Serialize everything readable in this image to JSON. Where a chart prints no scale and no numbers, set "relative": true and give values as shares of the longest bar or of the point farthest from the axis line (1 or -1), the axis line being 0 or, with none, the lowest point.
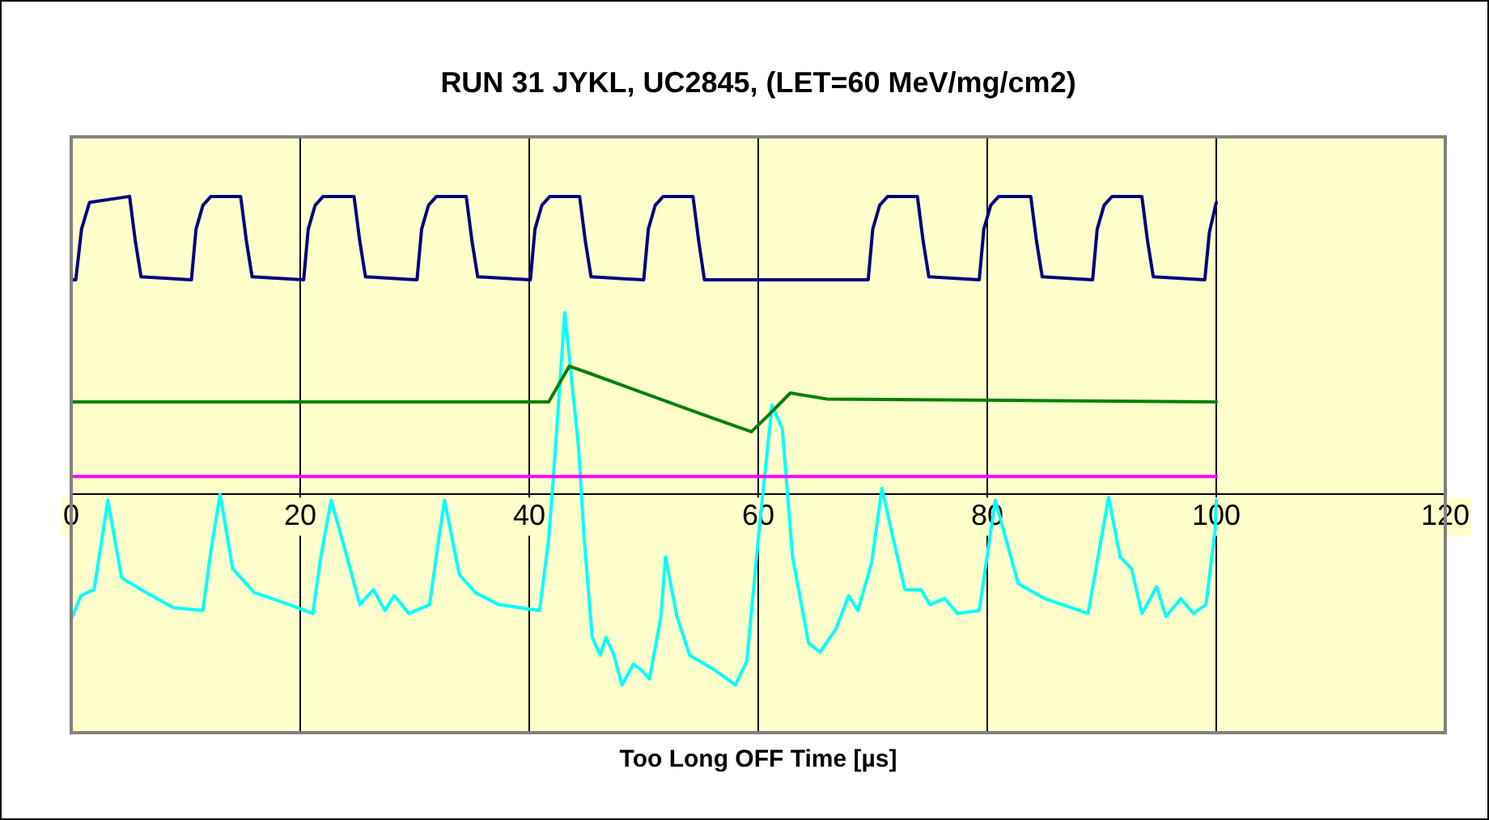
{
  "chart_data": {
    "type": "line",
    "title": "RUN 31 JYKL, UC2845, (LET=60 MeV/mg/cm2)",
    "xlabel": "Too Long OFF Time [µs]",
    "relative": true,
    "xlim": [
      0,
      120
    ],
    "xticks": [
      0,
      20,
      40,
      60,
      80,
      100,
      120
    ],
    "grid": "x",
    "legend": false,
    "marker": "none",
    "tick_labels": "x",
    "series": [
      {
        "color": "#000080",
        "x": [
          0,
          0.4,
          0.9,
          1.6,
          5.1,
          5.6,
          6.1,
          10.5,
          10.9,
          11.5,
          12.2,
          14.8,
          15.3,
          15.8,
          20.3,
          20.7,
          21.3,
          22.0,
          24.7,
          25.2,
          25.7,
          30.2,
          30.6,
          31.2,
          31.9,
          34.5,
          35.0,
          35.5,
          40.1,
          40.5,
          41.1,
          41.8,
          44.4,
          44.9,
          45.4,
          50.0,
          50.4,
          51.0,
          51.7,
          54.3,
          54.8,
          55.3,
          69.6,
          70.0,
          70.6,
          71.3,
          73.9,
          74.4,
          74.9,
          79.3,
          79.7,
          80.3,
          81.0,
          83.8,
          84.3,
          84.8,
          89.2,
          89.6,
          90.2,
          90.9,
          93.5,
          94.0,
          94.5,
          99.0,
          99.4,
          100
        ],
        "values": [
          0.72,
          0.72,
          0.89,
          0.98,
          1.0,
          0.85,
          0.73,
          0.72,
          0.89,
          0.97,
          1.0,
          1.0,
          0.85,
          0.73,
          0.72,
          0.89,
          0.97,
          1.0,
          1.0,
          0.85,
          0.73,
          0.72,
          0.89,
          0.97,
          1.0,
          1.0,
          0.85,
          0.73,
          0.72,
          0.89,
          0.97,
          1.0,
          1.0,
          0.85,
          0.73,
          0.72,
          0.89,
          0.97,
          1.0,
          1.0,
          0.85,
          0.72,
          0.72,
          0.89,
          0.97,
          1.0,
          1.0,
          0.85,
          0.73,
          0.72,
          0.89,
          0.97,
          1.0,
          1.0,
          0.85,
          0.73,
          0.72,
          0.89,
          0.97,
          1.0,
          1.0,
          0.85,
          0.73,
          0.72,
          0.88,
          0.98
        ]
      },
      {
        "color": "#008000",
        "x": [
          0,
          41.7,
          43.5,
          45,
          50,
          55,
          59.4,
          61,
          62.8,
          66,
          100
        ],
        "values": [
          0.31,
          0.31,
          0.43,
          0.41,
          0.34,
          0.27,
          0.21,
          0.27,
          0.34,
          0.32,
          0.31
        ]
      },
      {
        "color": "#ff00ff",
        "x": [
          0,
          100
        ],
        "values": [
          0.06,
          0.06
        ]
      },
      {
        "color": "#00ffff",
        "x": [
          0,
          0.85,
          2.0,
          3.2,
          4.4,
          6.1,
          8.9,
          11.5,
          12.2,
          13.0,
          14.1,
          16.0,
          18.3,
          21.1,
          21.8,
          22.7,
          23.8,
          25.2,
          26.4,
          27.4,
          28.2,
          29.5,
          31.3,
          32.1,
          32.6,
          33.9,
          35.3,
          37.3,
          40.9,
          41.7,
          42.3,
          43.1,
          44.3,
          44.8,
          45.5,
          46.2,
          46.7,
          47.4,
          48.1,
          49.1,
          49.8,
          50.5,
          51.5,
          51.9,
          52.9,
          54.0,
          56.2,
          58.0,
          59.0,
          60.0,
          61.2,
          62.1,
          63.0,
          64.4,
          65.4,
          66.8,
          67.9,
          68.7,
          69.9,
          70.8,
          72.8,
          74.2,
          75.0,
          76.3,
          77.4,
          79.3,
          80.7,
          82.7,
          85.0,
          88.8,
          90.6,
          91.6,
          92.6,
          93.5,
          94.8,
          95.6,
          96.9,
          98.0,
          99.1,
          99.9,
          100
        ],
        "values": [
          -0.42,
          -0.34,
          -0.32,
          -0.02,
          -0.28,
          -0.32,
          -0.38,
          -0.39,
          -0.19,
          0.0,
          -0.25,
          -0.33,
          -0.36,
          -0.4,
          -0.21,
          -0.02,
          -0.17,
          -0.37,
          -0.32,
          -0.39,
          -0.34,
          -0.4,
          -0.37,
          -0.15,
          -0.02,
          -0.27,
          -0.33,
          -0.37,
          -0.39,
          -0.15,
          0.16,
          0.61,
          0.16,
          -0.15,
          -0.48,
          -0.54,
          -0.48,
          -0.54,
          -0.64,
          -0.57,
          -0.59,
          -0.62,
          -0.41,
          -0.21,
          -0.41,
          -0.54,
          -0.59,
          -0.64,
          -0.56,
          -0.15,
          0.3,
          0.22,
          -0.21,
          -0.5,
          -0.53,
          -0.45,
          -0.34,
          -0.39,
          -0.23,
          0.02,
          -0.32,
          -0.32,
          -0.37,
          -0.35,
          -0.4,
          -0.39,
          -0.02,
          -0.3,
          -0.35,
          -0.4,
          -0.01,
          -0.21,
          -0.25,
          -0.4,
          -0.31,
          -0.41,
          -0.35,
          -0.4,
          -0.37,
          -0.12,
          -0.02
        ]
      }
    ]
  }
}
